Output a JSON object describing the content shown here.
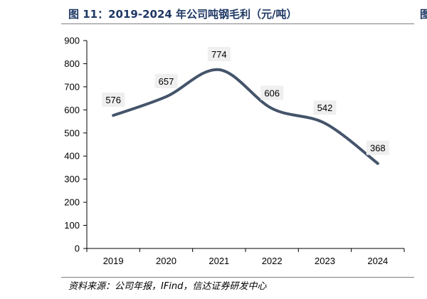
{
  "header": {
    "title": "图 11：2019-2024 年公司吨钢毛利（元/吨）",
    "right_mark": "图"
  },
  "footer": {
    "source": "资料来源：公司年报，IFind，信达证券研发中心"
  },
  "colors": {
    "line": "#44546a",
    "title": "#1f3864",
    "label_bg": "#efefef"
  },
  "chart_data": {
    "type": "line",
    "categories": [
      "2019",
      "2020",
      "2021",
      "2022",
      "2023",
      "2024"
    ],
    "series": [
      {
        "values": [
          576,
          657,
          774,
          606,
          542,
          368
        ]
      }
    ],
    "ylim": [
      0,
      900
    ],
    "yticks": [
      0,
      100,
      200,
      300,
      400,
      500,
      600,
      700,
      800,
      900
    ],
    "smooth": true,
    "grid": false,
    "legend": "none"
  }
}
